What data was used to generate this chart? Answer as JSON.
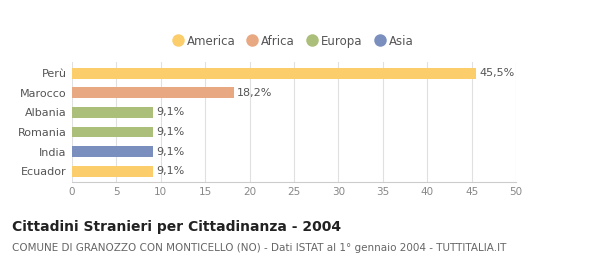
{
  "categories": [
    "Ecuador",
    "India",
    "Romania",
    "Albania",
    "Marocco",
    "Perù"
  ],
  "values": [
    9.1,
    9.1,
    9.1,
    9.1,
    18.2,
    45.5
  ],
  "labels": [
    "9,1%",
    "9,1%",
    "9,1%",
    "9,1%",
    "18,2%",
    "45,5%"
  ],
  "colors": [
    "#FBCE6B",
    "#7B8FBF",
    "#ABBF7A",
    "#ABBF7A",
    "#E8A882",
    "#FBCE6B"
  ],
  "legend": [
    {
      "label": "America",
      "color": "#FBCE6B"
    },
    {
      "label": "Africa",
      "color": "#E8A882"
    },
    {
      "label": "Europa",
      "color": "#ABBF7A"
    },
    {
      "label": "Asia",
      "color": "#7B8FBF"
    }
  ],
  "xlim": [
    0,
    50
  ],
  "xticks": [
    0,
    5,
    10,
    15,
    20,
    25,
    30,
    35,
    40,
    45,
    50
  ],
  "title": "Cittadini Stranieri per Cittadinanza - 2004",
  "subtitle": "COMUNE DI GRANOZZO CON MONTICELLO (NO) - Dati ISTAT al 1° gennaio 2004 - TUTTITALIA.IT",
  "background_color": "#ffffff",
  "grid_color": "#e0e0e0",
  "bar_height": 0.55,
  "label_fontsize": 8,
  "title_fontsize": 10,
  "subtitle_fontsize": 7.5
}
